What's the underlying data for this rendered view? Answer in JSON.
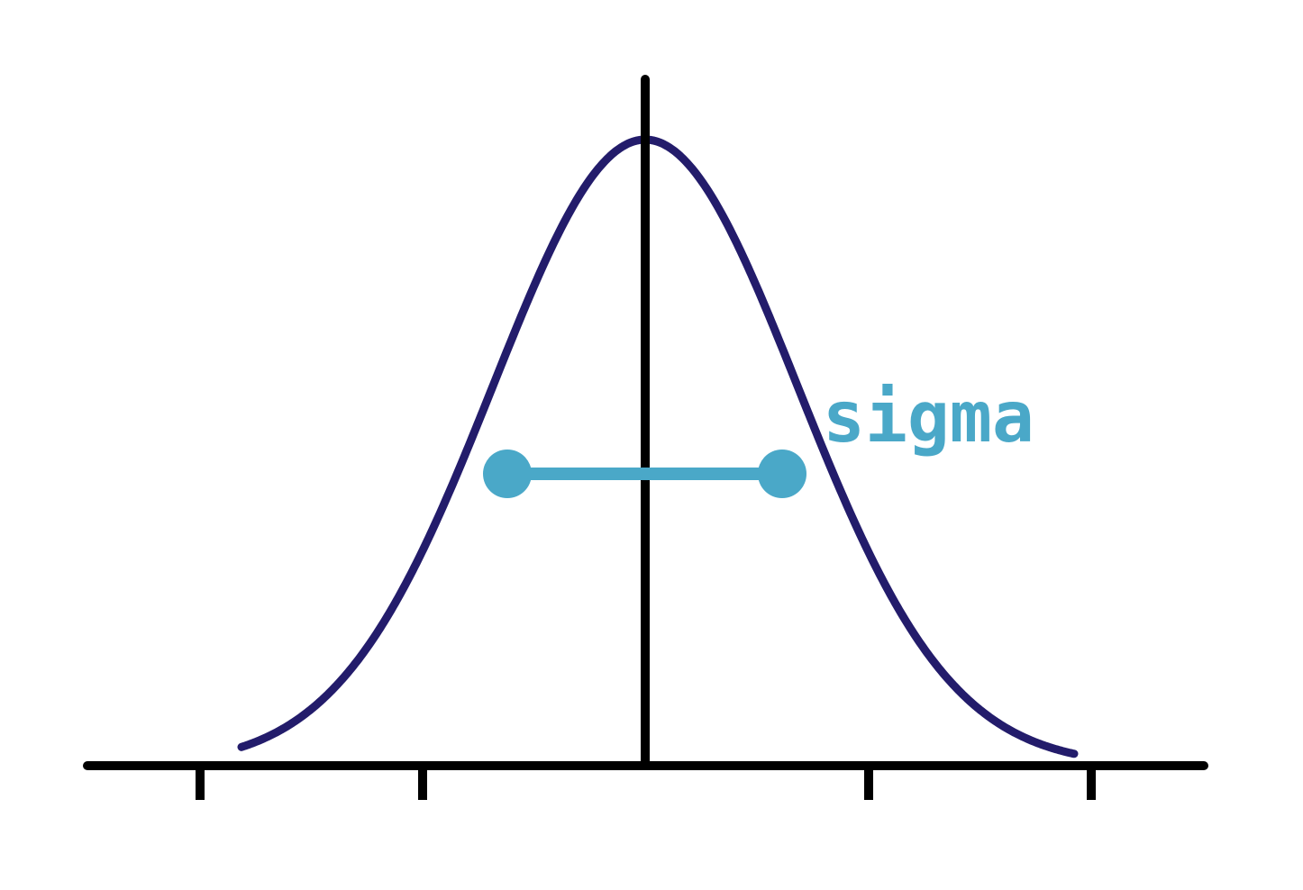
{
  "diagram": {
    "sigma_label": "sigma",
    "tick_count": 4
  },
  "colors": {
    "background": "#ffffff",
    "axis": "#000000",
    "curve": "#231c6b",
    "sigma_marker": "#4aa8c8"
  }
}
